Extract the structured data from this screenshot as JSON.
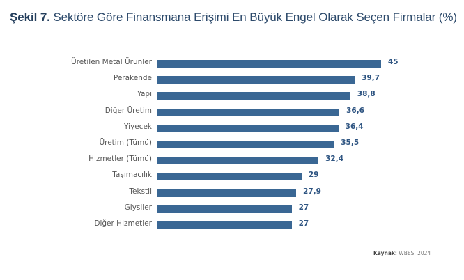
{
  "title": {
    "prefix": "Şekil 7.",
    "text": " Sektöre Göre Finansmana Erişimi En Büyük Engel Olarak Seçen Firmalar (%)"
  },
  "source": {
    "label": "Kaynak:",
    "text": " WBES, 2024"
  },
  "colors": {
    "bar": "#3a6794",
    "value_label": "#2f5582",
    "title": "#2d4a6b"
  },
  "chart_data": {
    "type": "bar",
    "orientation": "horizontal",
    "title": "Şekil 7. Sektöre Göre Finansmana Erişimi En Büyük Engel Olarak Seçen Firmalar (%)",
    "categories": [
      "Üretilen Metal Ürünler",
      "Perakende",
      "Yapı",
      "Diğer Üretim",
      "Yiyecek",
      "Üretim (Tümü)",
      "Hizmetler (Tümü)",
      "Taşımacılık",
      "Tekstil",
      "Giysiler",
      "Diğer Hizmetler"
    ],
    "values": [
      45,
      39.7,
      38.8,
      36.6,
      36.4,
      35.5,
      32.4,
      29,
      27.9,
      27,
      27
    ],
    "value_labels": [
      "45",
      "39,7",
      "38,8",
      "36,6",
      "36,4",
      "35,5",
      "32,4",
      "29",
      "27,9",
      "27",
      "27"
    ],
    "xlabel": "",
    "ylabel": "",
    "grid": false,
    "legend": null,
    "source": "Kaynak: WBES, 2024"
  }
}
